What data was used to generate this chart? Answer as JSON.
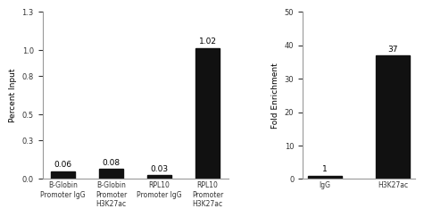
{
  "chart1": {
    "categories": [
      "B-Globin\nPromoter IgG",
      "B-Globin\nPromoter\nH3K27ac",
      "RPL10\nPromoter IgG",
      "RPL10\nPromoter\nH3K27ac"
    ],
    "values": [
      0.06,
      0.08,
      0.03,
      1.02
    ],
    "labels": [
      "0.06",
      "0.08",
      "0.03",
      "1.02"
    ],
    "ylabel": "Percent Input",
    "ylim": [
      0,
      1.3
    ],
    "yticks": [
      0.0,
      0.3,
      0.5,
      0.8,
      1.0,
      1.3
    ],
    "bar_color": "#111111",
    "bar_width": 0.5
  },
  "chart2": {
    "categories": [
      "IgG",
      "H3K27ac"
    ],
    "values": [
      1,
      37
    ],
    "labels": [
      "1",
      "37"
    ],
    "ylabel": "Fold Enrichment",
    "ylim": [
      0,
      50
    ],
    "yticks": [
      0,
      10,
      20,
      30,
      40,
      50
    ],
    "bar_color": "#111111",
    "bar_width": 0.5
  },
  "bg_color": "#ffffff",
  "label_fontsize": 5.5,
  "tick_fontsize": 6.0,
  "value_fontsize": 6.5,
  "ylabel_fontsize": 6.5
}
